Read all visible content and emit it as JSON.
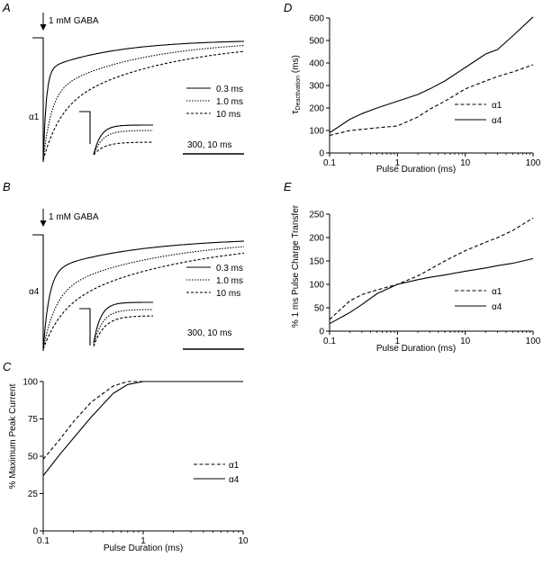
{
  "panels": {
    "A": {
      "letter": "A",
      "stimulus": "1 mM GABA",
      "subunit": "α1",
      "legend": [
        "0.3 ms",
        "1.0 ms",
        "10 ms"
      ],
      "scale": "300, 10 ms"
    },
    "B": {
      "letter": "B",
      "stimulus": "1 mM GABA",
      "subunit": "α4",
      "legend": [
        "0.3 ms",
        "1.0 ms",
        "10 ms"
      ],
      "scale": "300, 10 ms"
    },
    "C": {
      "letter": "C"
    },
    "D": {
      "letter": "D",
      "ylabel_main": "τ",
      "ylabel_sub": "Deactivation",
      "ylabel_unit": " (ms)"
    },
    "E": {
      "letter": "E"
    }
  },
  "chart_data": [
    {
      "panel": "C",
      "type": "line",
      "xscale": "log",
      "xlim": [
        0.1,
        10
      ],
      "ylim": [
        0,
        100
      ],
      "xticks": [
        0.1,
        1,
        10
      ],
      "xtick_labels": [
        "0.1",
        "1",
        "10"
      ],
      "yticks": [
        0,
        25,
        50,
        75,
        100
      ],
      "ytick_labels": [
        "0",
        "25",
        "50",
        "75",
        "100"
      ],
      "xlabel": "Pulse Duration (ms)",
      "ylabel": "% Maximum Peak Current",
      "legend_position": "right",
      "series": [
        {
          "name": "α1",
          "style": "dashed",
          "x": [
            0.1,
            0.15,
            0.2,
            0.3,
            0.5,
            0.7,
            1,
            2,
            10
          ],
          "y": [
            48,
            62,
            73,
            86,
            97,
            100,
            100,
            100,
            100
          ]
        },
        {
          "name": "α4",
          "style": "solid",
          "x": [
            0.1,
            0.15,
            0.2,
            0.3,
            0.5,
            0.7,
            1,
            2,
            10
          ],
          "y": [
            37,
            52,
            62,
            76,
            92,
            98,
            100,
            100,
            100
          ]
        }
      ]
    },
    {
      "panel": "D",
      "type": "line",
      "xscale": "log",
      "xlim": [
        0.1,
        100
      ],
      "ylim": [
        0,
        600
      ],
      "xticks": [
        0.1,
        1,
        10,
        100
      ],
      "xtick_labels": [
        "0.1",
        "1",
        "10",
        "100"
      ],
      "yticks": [
        0,
        100,
        200,
        300,
        400,
        500,
        600
      ],
      "ytick_labels": [
        "0",
        "100",
        "200",
        "300",
        "400",
        "500",
        "600"
      ],
      "xlabel": "Pulse Duration (ms)",
      "legend_position": "right",
      "series": [
        {
          "name": "α1",
          "style": "dashed",
          "x": [
            0.1,
            0.2,
            0.3,
            0.5,
            1,
            2,
            3,
            5,
            10,
            20,
            30,
            50,
            100
          ],
          "y": [
            78,
            100,
            105,
            112,
            120,
            160,
            195,
            230,
            285,
            320,
            340,
            360,
            392
          ]
        },
        {
          "name": "α4",
          "style": "solid",
          "x": [
            0.1,
            0.2,
            0.3,
            0.5,
            1,
            2,
            3,
            5,
            10,
            20,
            30,
            50,
            100
          ],
          "y": [
            90,
            150,
            175,
            200,
            230,
            260,
            285,
            320,
            380,
            440,
            460,
            520,
            605
          ]
        }
      ]
    },
    {
      "panel": "E",
      "type": "line",
      "xscale": "log",
      "xlim": [
        0.1,
        100
      ],
      "ylim": [
        0,
        250
      ],
      "xticks": [
        0.1,
        1,
        10,
        100
      ],
      "xtick_labels": [
        "0.1",
        "1",
        "10",
        "100"
      ],
      "yticks": [
        0,
        50,
        100,
        150,
        200,
        250
      ],
      "ytick_labels": [
        "0",
        "50",
        "100",
        "150",
        "200",
        "250"
      ],
      "xlabel": "Pulse Duration (ms)",
      "ylabel": "% 1 ms Pulse Charge Transfer",
      "legend_position": "right",
      "series": [
        {
          "name": "α1",
          "style": "dashed",
          "x": [
            0.1,
            0.2,
            0.3,
            0.5,
            1,
            2,
            3,
            5,
            10,
            20,
            30,
            50,
            100
          ],
          "y": [
            25,
            65,
            78,
            88,
            100,
            118,
            132,
            150,
            172,
            190,
            200,
            215,
            242
          ]
        },
        {
          "name": "α4",
          "style": "solid",
          "x": [
            0.1,
            0.2,
            0.3,
            0.5,
            1,
            2,
            3,
            5,
            10,
            20,
            30,
            50,
            100
          ],
          "y": [
            16,
            40,
            57,
            80,
            100,
            110,
            115,
            120,
            128,
            135,
            140,
            145,
            155
          ]
        }
      ]
    }
  ]
}
